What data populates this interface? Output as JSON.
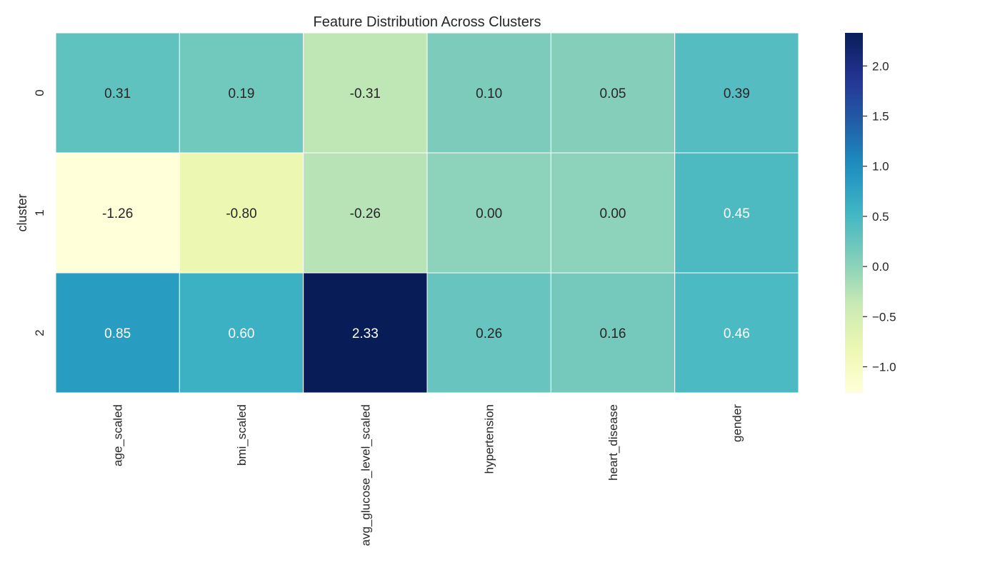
{
  "chart_data": {
    "type": "heatmap",
    "title": "Feature Distribution Across Clusters",
    "xlabel": "",
    "ylabel": "cluster",
    "x_categories": [
      "age_scaled",
      "bmi_scaled",
      "avg_glucose_level_scaled",
      "hypertension",
      "heart_disease",
      "gender"
    ],
    "y_categories": [
      "0",
      "1",
      "2"
    ],
    "values": [
      [
        0.31,
        0.19,
        -0.31,
        0.1,
        0.05,
        0.39
      ],
      [
        -1.26,
        -0.8,
        -0.26,
        0.0,
        0.0,
        0.45
      ],
      [
        0.85,
        0.6,
        2.33,
        0.26,
        0.16,
        0.46
      ]
    ],
    "cell_labels": [
      [
        "0.31",
        "0.19",
        "-0.31",
        "0.10",
        "0.05",
        "0.39"
      ],
      [
        "-1.26",
        "-0.80",
        "-0.26",
        "0.00",
        "0.00",
        "0.45"
      ],
      [
        "0.85",
        "0.60",
        "2.33",
        "0.26",
        "0.16",
        "0.46"
      ]
    ],
    "colormap": "YlGnBu",
    "color_range": [
      -1.26,
      2.33
    ],
    "colorbar": {
      "ticks": [
        -1.0,
        -0.5,
        0.0,
        0.5,
        1.0,
        1.5,
        2.0
      ],
      "tick_labels": [
        "−1.0",
        "−0.5",
        "0.0",
        "0.5",
        "1.0",
        "1.5",
        "2.0"
      ]
    }
  }
}
